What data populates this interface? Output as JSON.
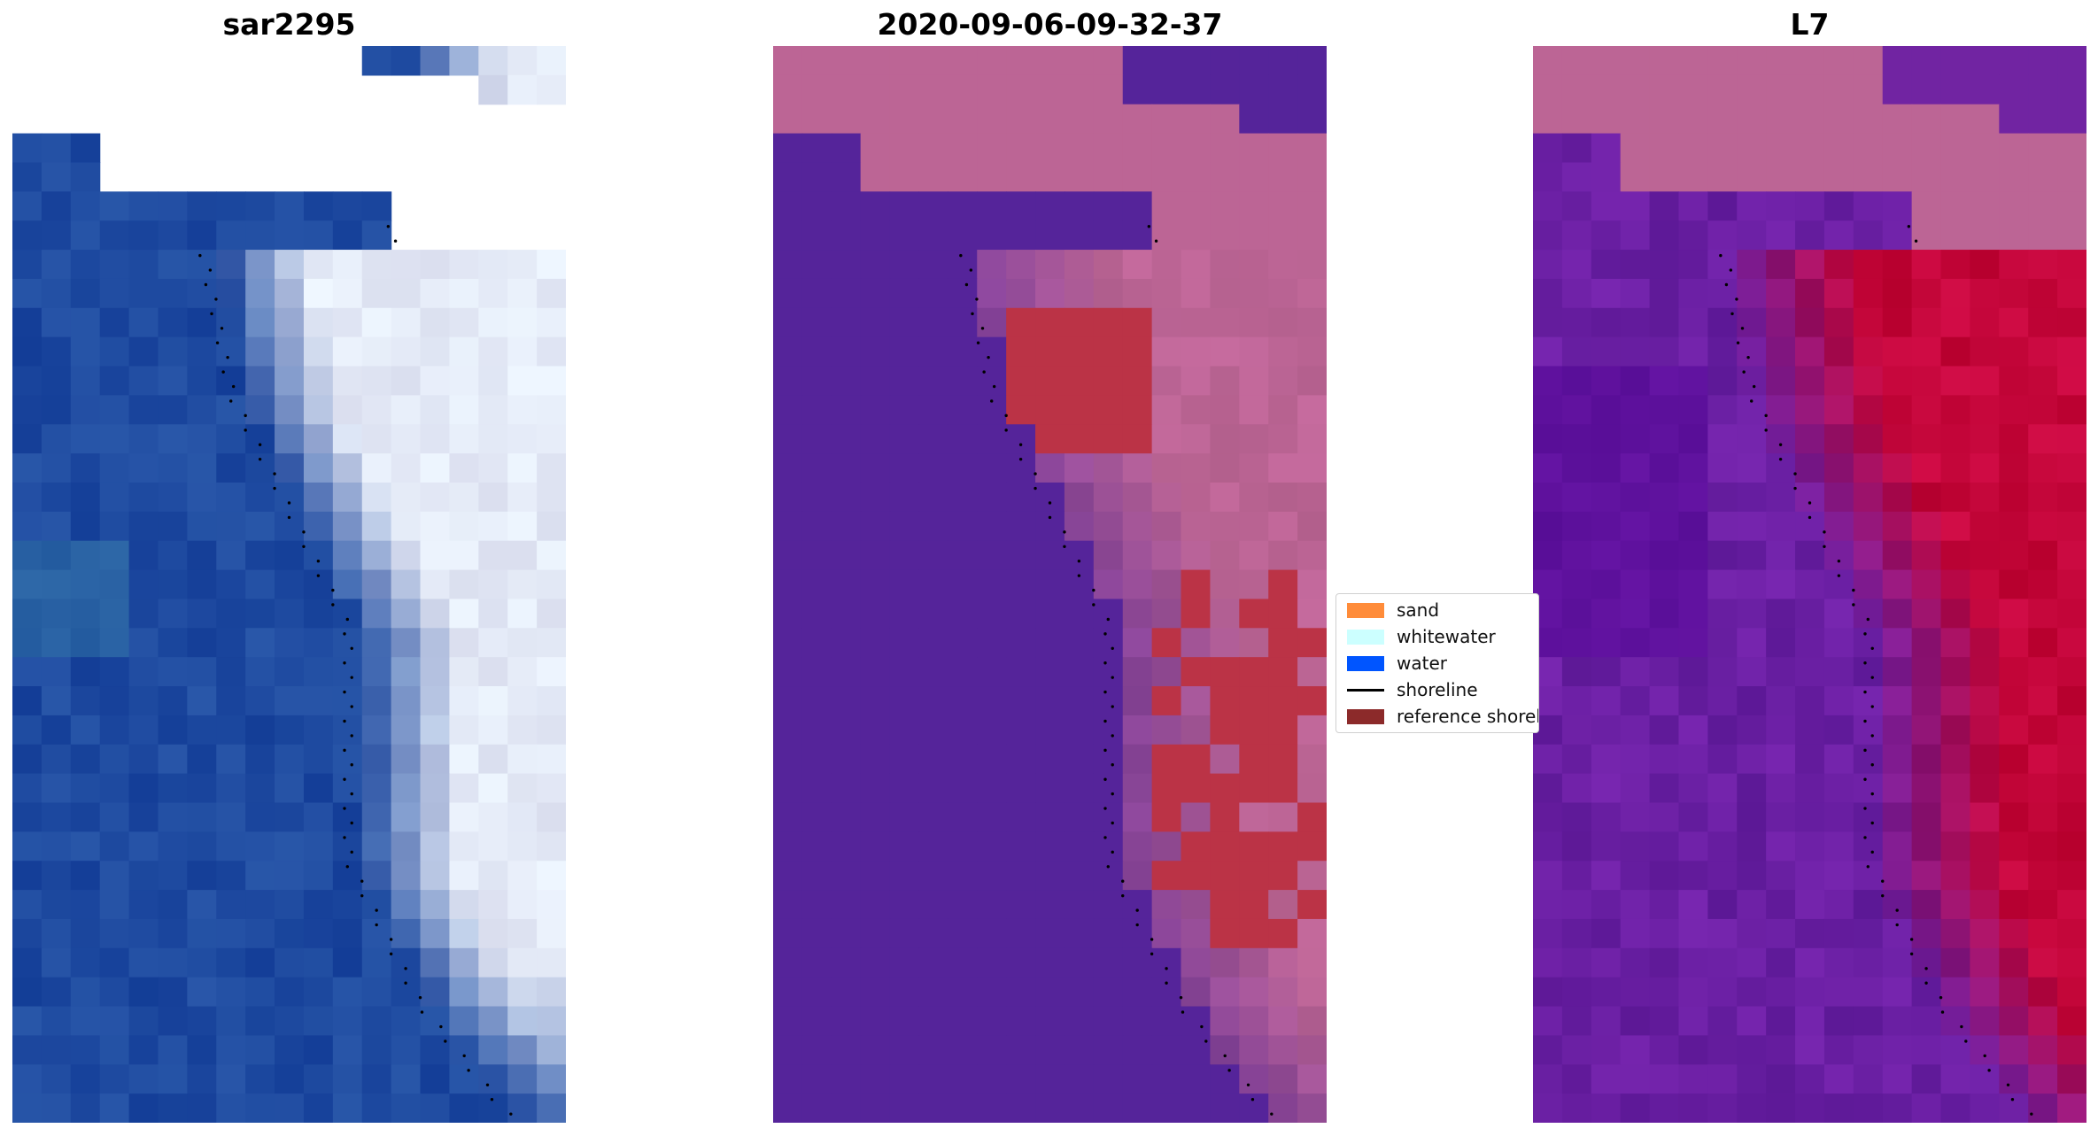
{
  "panels": [
    {
      "title": "sar2295"
    },
    {
      "title": "2020-09-06-09-32-37"
    },
    {
      "title": "L7"
    }
  ],
  "legend": {
    "items": [
      {
        "label": "sand",
        "color": "#ff8c3a"
      },
      {
        "label": "whitewater",
        "color": "#ccffff"
      },
      {
        "label": "water",
        "color": "#0055ff"
      },
      {
        "label": "shoreline",
        "color": "#000000"
      },
      {
        "label": "reference shoreline",
        "color": "#8c2a2a"
      }
    ]
  },
  "colors": {
    "rgb_water": "#1e4aa0",
    "rgb_whitewater": "#eef2fb",
    "class_water": "#55249a",
    "class_sand": "#bc6595",
    "class_reference": "#bb3346",
    "mndwi_low": "#6a1fa3",
    "mndwi_high": "#c4063a"
  }
}
